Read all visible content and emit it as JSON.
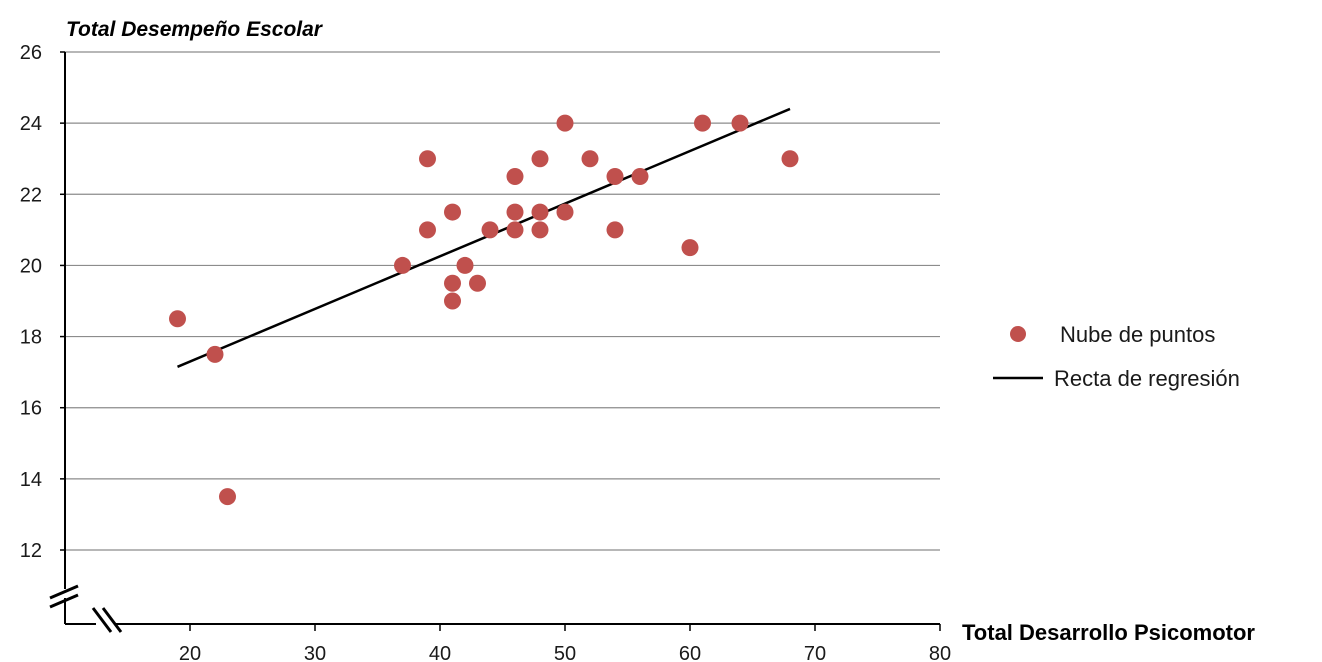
{
  "chart_data": {
    "type": "scatter",
    "ylabel": "Total Desempeño Escolar",
    "xlabel": "Total Desarrollo Psicomotor",
    "xlim": [
      10,
      80
    ],
    "ylim": [
      11,
      26
    ],
    "x_ticks": [
      20,
      30,
      40,
      50,
      60,
      70,
      80
    ],
    "y_ticks": [
      12,
      14,
      16,
      18,
      20,
      22,
      24,
      26
    ],
    "grid": "horizontal",
    "axis_breaks": true,
    "legend_position": "right",
    "point_color": "#c0504d",
    "line_color": "#000000",
    "series": [
      {
        "name": "Nube de puntos",
        "type": "scatter",
        "points": [
          [
            19,
            18.5
          ],
          [
            22,
            17.5
          ],
          [
            23,
            13.5
          ],
          [
            37,
            20
          ],
          [
            39,
            23
          ],
          [
            39,
            21
          ],
          [
            41,
            21.5
          ],
          [
            41,
            19.5
          ],
          [
            41,
            19
          ],
          [
            42,
            20
          ],
          [
            43,
            19.5
          ],
          [
            44,
            21
          ],
          [
            46,
            22.5
          ],
          [
            46,
            21.5
          ],
          [
            46,
            21
          ],
          [
            48,
            23
          ],
          [
            48,
            21.5
          ],
          [
            48,
            21
          ],
          [
            50,
            24
          ],
          [
            50,
            21.5
          ],
          [
            52,
            23
          ],
          [
            54,
            22.5
          ],
          [
            54,
            21
          ],
          [
            56,
            22.5
          ],
          [
            60,
            20.5
          ],
          [
            61,
            24
          ],
          [
            64,
            24
          ],
          [
            68,
            23
          ]
        ]
      },
      {
        "name": "Recta de regresión",
        "type": "line",
        "points": [
          [
            19,
            17.15
          ],
          [
            68,
            24.4
          ]
        ]
      }
    ]
  }
}
